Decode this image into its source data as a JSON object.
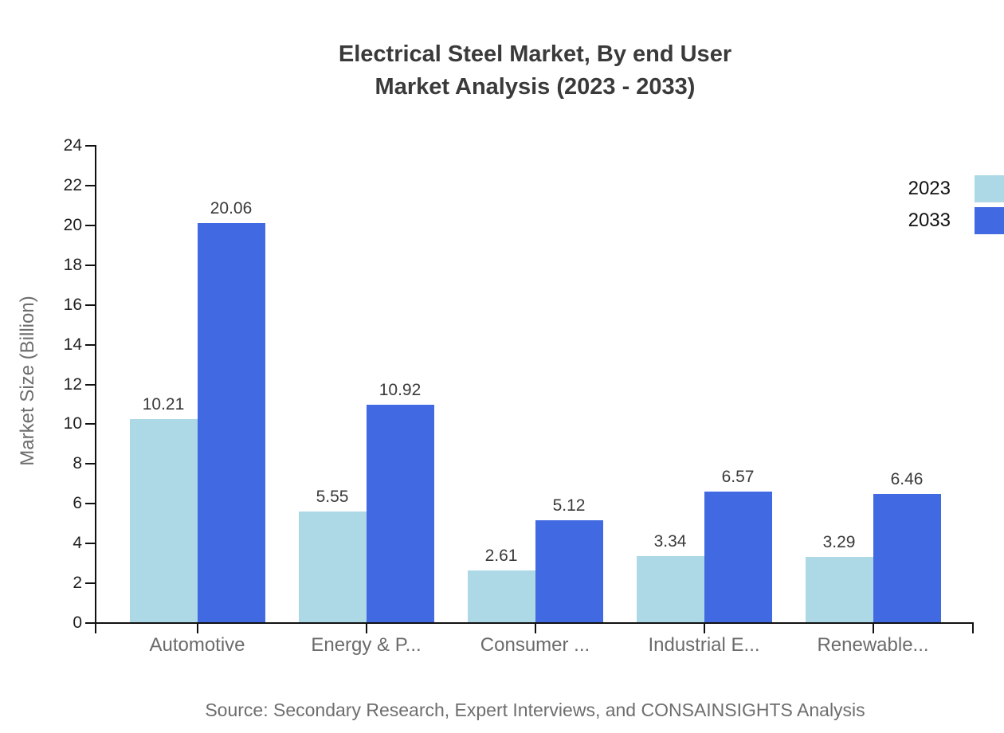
{
  "title": {
    "line1": "Electrical Steel Market, By end User",
    "line2": "Market Analysis (2023 - 2033)"
  },
  "source": "Source: Secondary Research, Expert Interviews, and CONSAINSIGHTS Analysis",
  "chart_data": {
    "type": "bar",
    "categories": [
      "Automotive",
      "Energy & P...",
      "Consumer ...",
      "Industrial E...",
      "Renewable..."
    ],
    "series": [
      {
        "name": "2023",
        "color": "#ADD8E6",
        "values": [
          10.21,
          5.55,
          2.61,
          3.34,
          3.29
        ]
      },
      {
        "name": "2033",
        "color": "#4169E1",
        "values": [
          20.06,
          10.92,
          5.12,
          6.57,
          6.46
        ]
      }
    ],
    "value_labels": [
      "10.21",
      "20.06",
      "5.55",
      "10.92",
      "2.61",
      "5.12",
      "3.34",
      "6.57",
      "3.29",
      "6.46"
    ],
    "xlabel": "",
    "ylabel": "Market Size (Billion)",
    "ylim": [
      0,
      24
    ],
    "ytick_step": 2,
    "ytick_labels": [
      "0",
      "2",
      "4",
      "6",
      "8",
      "10",
      "12",
      "14",
      "16",
      "18",
      "20",
      "22",
      "24"
    ],
    "grid": false,
    "legend_position": "top-right",
    "axis_color": "#111111"
  }
}
